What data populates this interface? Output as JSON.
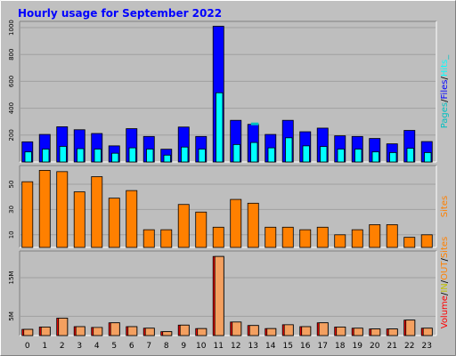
{
  "title": "Hourly usage for September 2022",
  "colors": {
    "title": "#0000ff",
    "background": "#c0c0c0",
    "panel_bg": "#bebebe",
    "grid": "#a0a0a0",
    "hits": "#00ffff",
    "files": "#0000ff",
    "pages": "#00c0c0",
    "sites": "#ff8000",
    "kbytes": "#ff0000",
    "kbytes_face": "#f4a060",
    "in": "#c0c000",
    "out": "#ff8000",
    "volume": "#ff0000"
  },
  "chart_data": [
    {
      "type": "bar",
      "panel": "top",
      "categories": [
        "0",
        "1",
        "2",
        "3",
        "4",
        "5",
        "6",
        "7",
        "8",
        "9",
        "10",
        "11",
        "12",
        "13",
        "14",
        "15",
        "16",
        "17",
        "18",
        "19",
        "20",
        "21",
        "22",
        "23"
      ],
      "yticks": [
        200,
        400,
        600,
        800,
        1000
      ],
      "ylim": [
        0,
        1020
      ],
      "series": [
        {
          "name": "Hits",
          "values": [
            150,
            205,
            262,
            240,
            212,
            120,
            248,
            190,
            95,
            260,
            190,
            1010,
            310,
            280,
            205,
            310,
            225,
            252,
            195,
            190,
            175,
            135,
            235,
            152
          ]
        },
        {
          "name": "Files",
          "values": [
            75,
            96,
            116,
            99,
            96,
            65,
            105,
            96,
            51,
            111,
            96,
            515,
            130,
            145,
            105,
            180,
            120,
            115,
            96,
            96,
            75,
            70,
            102,
            70
          ]
        },
        {
          "name": "Pages",
          "values": [
            0,
            0,
            0,
            0,
            0,
            0,
            0,
            0,
            0,
            0,
            0,
            0,
            0,
            14,
            0,
            0,
            0,
            0,
            0,
            0,
            0,
            0,
            0,
            0
          ]
        }
      ],
      "legend": [
        "Pages",
        "/",
        "Files",
        "/",
        "Hits",
        "_"
      ]
    },
    {
      "type": "bar",
      "panel": "middle",
      "categories": [
        "0",
        "1",
        "2",
        "3",
        "4",
        "5",
        "6",
        "7",
        "8",
        "9",
        "10",
        "11",
        "12",
        "13",
        "14",
        "15",
        "16",
        "17",
        "18",
        "19",
        "20",
        "21",
        "22",
        "23"
      ],
      "yticks": [
        10,
        30,
        50
      ],
      "ylim": [
        0,
        62
      ],
      "series": [
        {
          "name": "Sites",
          "values": [
            52,
            61,
            60,
            44,
            56,
            39,
            45,
            14,
            14,
            34,
            28,
            16,
            38,
            35,
            16,
            16,
            14,
            16,
            10,
            14,
            18,
            18,
            8,
            10
          ]
        }
      ],
      "legend": [
        "Sites"
      ]
    },
    {
      "type": "bar",
      "panel": "bottom",
      "categories": [
        "0",
        "1",
        "2",
        "3",
        "4",
        "5",
        "6",
        "7",
        "8",
        "9",
        "10",
        "11",
        "12",
        "13",
        "14",
        "15",
        "16",
        "17",
        "18",
        "19",
        "20",
        "21",
        "22",
        "23"
      ],
      "yticks_values": [
        5,
        15
      ],
      "ytick_labels": [
        "5M",
        "15M"
      ],
      "ylim": [
        0,
        21
      ],
      "series": [
        {
          "name": "Volume",
          "values": [
            1.6,
            2.2,
            4.5,
            2.3,
            2.1,
            3.3,
            2.3,
            1.9,
            1.0,
            2.7,
            1.8,
            20.5,
            3.5,
            2.6,
            1.8,
            2.8,
            2.3,
            3.3,
            2.2,
            1.9,
            1.7,
            1.7,
            4.0,
            1.9
          ]
        }
      ],
      "legend": [
        "Volume",
        "/",
        "IN",
        "/",
        "OUT",
        "/",
        "Sites"
      ]
    }
  ]
}
